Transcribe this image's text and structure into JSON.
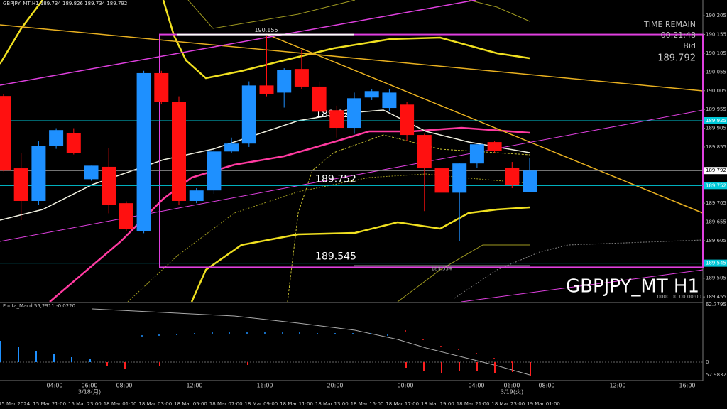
{
  "title": "GBPJPY_MT,H1  189.734 189.826 189.734 189.792",
  "info": {
    "time_remain_label": "TIME REMAIN",
    "time_remain": "00:21:48",
    "bid_label": "Bid",
    "bid": 189.792
  },
  "chart_data": {
    "type": "candlestick",
    "symbol_label": "GBPJPY_MT H1",
    "empty_time": "0000.00.00 00:00",
    "up_color": "#1e90ff",
    "down_color": "#ff1010",
    "ylim": [
      189.442,
      190.247
    ],
    "yticks": [
      190.205,
      190.155,
      190.105,
      190.055,
      190.005,
      189.955,
      189.905,
      189.855,
      189.705,
      189.655,
      189.605,
      189.505,
      189.455
    ],
    "open": [
      189.991,
      189.798,
      189.711,
      189.858,
      189.892,
      189.769,
      189.802,
      189.705,
      189.631,
      190.052,
      189.976,
      189.711,
      189.739,
      189.843,
      189.864,
      190.019,
      190.0,
      190.063,
      190.016,
      189.953,
      189.906,
      189.987,
      189.959,
      189.968,
      189.887,
      189.798,
      189.733,
      189.811,
      189.868,
      189.8,
      189.734
    ],
    "high": [
      189.995,
      189.839,
      189.87,
      189.905,
      189.905,
      189.805,
      189.853,
      189.71,
      190.058,
      190.058,
      189.99,
      189.745,
      189.85,
      189.88,
      190.03,
      190.152,
      190.065,
      190.114,
      190.03,
      189.965,
      190.0,
      190.01,
      190.01,
      189.975,
      189.89,
      189.805,
      189.811,
      189.862,
      189.87,
      189.815,
      189.826
    ],
    "low": [
      189.79,
      189.66,
      189.7,
      189.85,
      189.835,
      189.765,
      189.678,
      189.63,
      189.625,
      189.97,
      189.7,
      189.705,
      189.73,
      189.838,
      189.855,
      189.99,
      189.96,
      190.01,
      189.94,
      189.88,
      189.89,
      189.98,
      189.95,
      189.87,
      189.684,
      189.546,
      189.603,
      189.8,
      189.84,
      189.745,
      189.734
    ],
    "close": [
      189.792,
      189.711,
      189.858,
      189.9,
      189.839,
      189.805,
      189.701,
      189.637,
      190.052,
      189.976,
      189.711,
      189.739,
      189.843,
      189.864,
      190.019,
      189.997,
      190.061,
      190.016,
      189.949,
      189.906,
      189.985,
      190.004,
      190.0,
      189.887,
      189.798,
      189.733,
      189.811,
      189.862,
      189.845,
      189.754,
      189.792
    ],
    "levels": [
      {
        "value": 189.925,
        "color": "#00c8d8",
        "text_color": "#ffffff"
      },
      {
        "value": 189.792,
        "color": "#9a9a9a",
        "text_color": "#000000"
      },
      {
        "value": 189.752,
        "color": "#00c8d8",
        "text_color": "#ffffff"
      },
      {
        "value": 189.545,
        "color": "#00c8d8",
        "text_color": "#ffffff"
      }
    ],
    "box": {
      "top": 190.155,
      "bottom": 189.534,
      "color": "#e040e0"
    },
    "time_labels": [
      "15 Mar 2024",
      "15 Mar 21:00",
      "15 Mar 23:00",
      "18 Mar 01:00",
      "18 Mar 03:00",
      "18 Mar 05:00",
      "18 Mar 07:00",
      "18 Mar 09:00",
      "18 Mar 11:00",
      "18 Mar 13:00",
      "18 Mar 15:00",
      "18 Mar 17:00",
      "18 Mar 19:00",
      "18 Mar 21:00",
      "18 Mar 23:00",
      "19 Mar 01:00"
    ],
    "hour_labels": [
      "04:00",
      "06:00",
      "08:00",
      "12:00",
      "16:00",
      "20:00",
      "00:00",
      "04:00",
      "06:00",
      "08:00",
      "12:00",
      "16:00"
    ],
    "day_labels": [
      "3/18(月)",
      "3/19(火)"
    ]
  },
  "macd": {
    "title": "Fuuta_Macd 55,2911 -0.0220",
    "top_label": "62.7795",
    "zero_label": "0",
    "bottom_label": "52.9832"
  }
}
